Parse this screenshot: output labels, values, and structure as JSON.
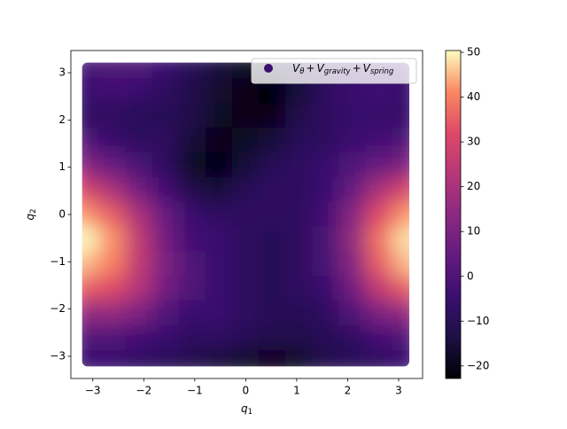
{
  "chart_data": {
    "type": "heatmap",
    "x": [
      -3.14,
      -2.62,
      -2.09,
      -1.57,
      -1.05,
      -0.52,
      0,
      0.52,
      1.05,
      1.57,
      2.09,
      2.62,
      3.14
    ],
    "y": [
      3.14,
      2.62,
      2.09,
      1.57,
      1.05,
      0.52,
      0,
      -0.52,
      -1.05,
      -1.57,
      -2.09,
      -2.62,
      -3.14
    ],
    "z": [
      [
        -2,
        0,
        0,
        -5,
        -10,
        -15,
        -18,
        -18,
        -12,
        -8,
        -5,
        -3,
        -2
      ],
      [
        -5,
        -3,
        -5,
        -8,
        -12,
        -17,
        -20,
        -22,
        -15,
        -8,
        -5,
        -4,
        -5
      ],
      [
        -8,
        -8,
        -10,
        -10,
        -12,
        -18,
        -20,
        -20,
        -12,
        -8,
        -6,
        -6,
        -6
      ],
      [
        0,
        -5,
        -8,
        -8,
        -15,
        -20,
        -18,
        -15,
        -10,
        -8,
        -5,
        -3,
        0
      ],
      [
        12,
        5,
        -2,
        -8,
        -18,
        -21,
        -15,
        -10,
        -8,
        -5,
        0,
        5,
        10
      ],
      [
        30,
        20,
        8,
        -3,
        -12,
        -15,
        -10,
        -8,
        -8,
        -5,
        5,
        20,
        30
      ],
      [
        42,
        35,
        20,
        5,
        -5,
        -8,
        -8,
        -8,
        -8,
        -3,
        12,
        32,
        42
      ],
      [
        50,
        42,
        25,
        8,
        -3,
        -5,
        -8,
        -10,
        -8,
        -2,
        15,
        38,
        48
      ],
      [
        45,
        40,
        25,
        10,
        0,
        -5,
        -8,
        -10,
        -8,
        -2,
        12,
        35,
        45
      ],
      [
        35,
        32,
        22,
        8,
        0,
        -5,
        -8,
        -10,
        -8,
        -5,
        8,
        25,
        35
      ],
      [
        15,
        15,
        10,
        0,
        -5,
        -5,
        -8,
        -10,
        -10,
        -8,
        0,
        10,
        15
      ],
      [
        0,
        0,
        -3,
        -5,
        -8,
        -8,
        -10,
        -12,
        -12,
        -10,
        -8,
        -3,
        0
      ],
      [
        -5,
        -5,
        -8,
        -10,
        -12,
        -15,
        -18,
        -20,
        -18,
        -12,
        -10,
        -8,
        -5
      ]
    ],
    "colormap": "magma",
    "xlim": [
      -3.43,
      3.47
    ],
    "ylim": [
      -3.47,
      3.47
    ],
    "clim": [
      -22.8,
      50.4
    ],
    "xticks": [
      {
        "value": -3,
        "label": "−3"
      },
      {
        "value": -2,
        "label": "−2"
      },
      {
        "value": -1,
        "label": "−1"
      },
      0,
      1,
      2,
      3
    ],
    "yticks": [
      {
        "value": -3,
        "label": "−3"
      },
      {
        "value": -2,
        "label": "−2"
      },
      {
        "value": -1,
        "label": "−1"
      },
      0,
      1,
      2,
      3
    ],
    "cticks": [
      {
        "value": -20,
        "label": "−20"
      },
      {
        "value": -10,
        "label": "−10"
      },
      0,
      10,
      20,
      30,
      40,
      50
    ],
    "xlabel": {
      "base": "q",
      "sub": "1"
    },
    "ylabel": {
      "base": "q",
      "sub": "2"
    },
    "legend": {
      "marker_color": "#3b0f70",
      "joiner": "+",
      "terms": [
        [
          "V",
          "θ"
        ],
        [
          "V",
          "gravity"
        ],
        [
          "V",
          "spring"
        ]
      ]
    }
  }
}
